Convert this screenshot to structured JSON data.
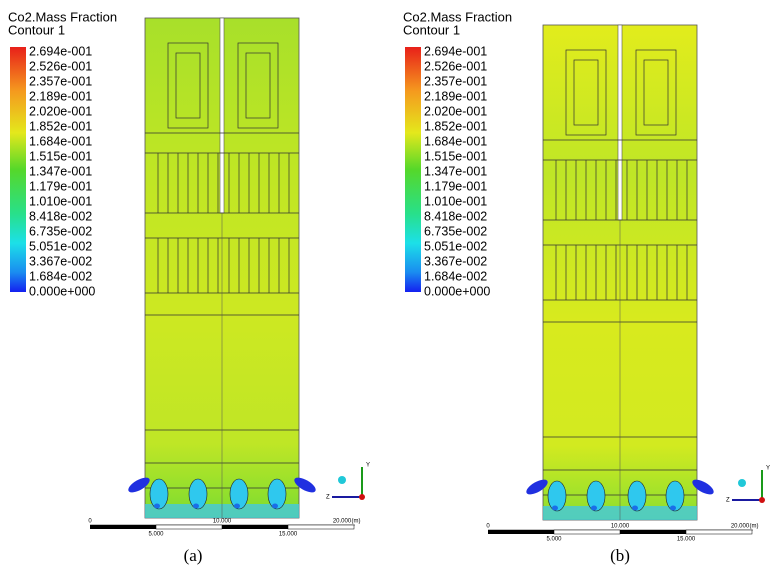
{
  "panels": [
    {
      "legend": {
        "title": "Co2.Mass Fraction",
        "subtitle": "Contour 1",
        "labels": [
          "2.694e-001",
          "2.526e-001",
          "2.357e-001",
          "2.189e-001",
          "2.020e-001",
          "1.852e-001",
          "1.684e-001",
          "1.515e-001",
          "1.347e-001",
          "1.179e-001",
          "1.010e-001",
          "8.418e-002",
          "6.735e-002",
          "5.051e-002",
          "3.367e-002",
          "1.684e-002",
          "0.000e+000"
        ]
      },
      "scale": {
        "top": [
          "0",
          "10.000",
          "20.000",
          "(m)"
        ],
        "bottom": [
          "5.000",
          "15.000"
        ]
      },
      "axes": {
        "y": "Y",
        "z": "Z"
      },
      "caption": "(a)"
    },
    {
      "legend": {
        "title": "Co2.Mass Fraction",
        "subtitle": "Contour 1",
        "labels": [
          "2.694e-001",
          "2.526e-001",
          "2.357e-001",
          "2.189e-001",
          "2.020e-001",
          "1.852e-001",
          "1.684e-001",
          "1.515e-001",
          "1.347e-001",
          "1.179e-001",
          "1.010e-001",
          "8.418e-002",
          "6.735e-002",
          "5.051e-002",
          "3.367e-002",
          "1.684e-002",
          "0.000e+000"
        ]
      },
      "scale": {
        "top": [
          "0",
          "10.000",
          "20.000",
          "(m)"
        ],
        "bottom": [
          "5.000",
          "15.000"
        ]
      },
      "axes": {
        "y": "Y",
        "z": "Z"
      },
      "caption": "(b)"
    }
  ]
}
